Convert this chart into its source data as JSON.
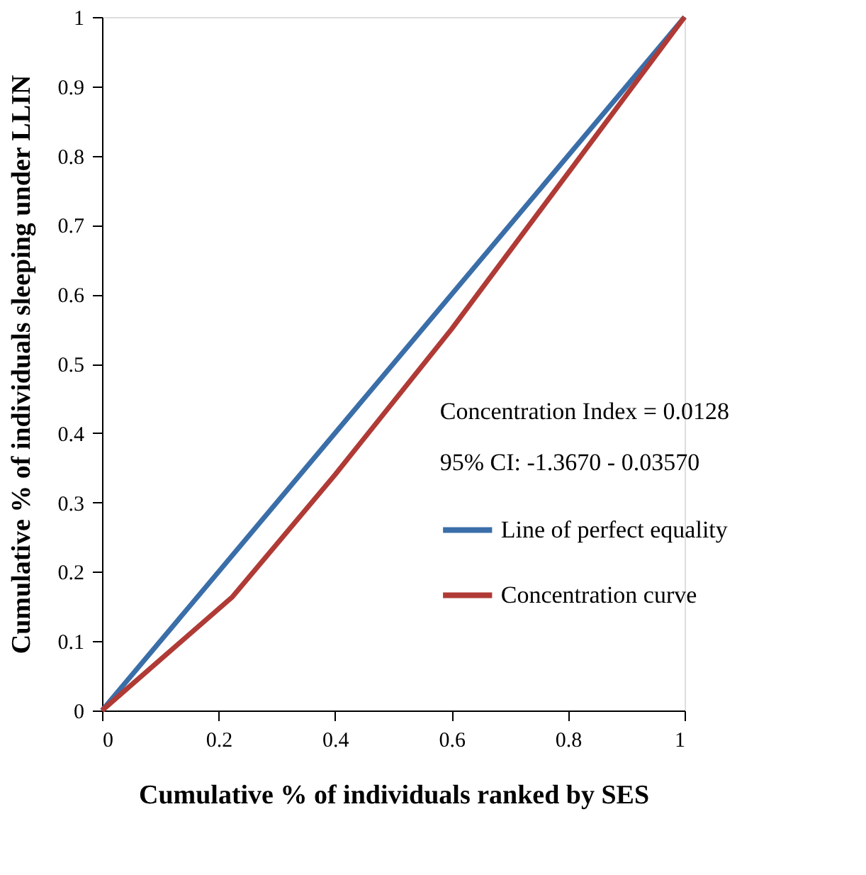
{
  "chart_data": {
    "type": "line",
    "xlabel": "Cumulative % of individuals  ranked by SES",
    "ylabel": "Cumulative % of individuals sleeping under LLIN",
    "annotations": [
      "Concentration Index = 0.0128",
      "95% CI: -1.3670 - 0.03570"
    ],
    "series": [
      {
        "name": "Line of perfect equality",
        "color": "#3a6ea8",
        "x": [
          0,
          1
        ],
        "values": [
          0,
          1
        ]
      },
      {
        "name": "Concentration curve",
        "color": "#b03a35",
        "x": [
          0,
          0.224,
          0.4,
          0.6,
          0.8,
          1
        ],
        "values": [
          0,
          0.164,
          0.34,
          0.55,
          0.775,
          1
        ]
      }
    ],
    "xlim": [
      0,
      1
    ],
    "ylim": [
      0,
      1
    ],
    "xticks": [
      0,
      0.2,
      0.4,
      0.6,
      0.8,
      1
    ],
    "yticks": [
      0,
      0.1,
      0.2,
      0.3,
      0.4,
      0.5,
      0.6,
      0.7,
      0.8,
      0.9,
      1
    ],
    "grid": false,
    "legend": "right",
    "marker": "none",
    "line_style": "solid"
  }
}
